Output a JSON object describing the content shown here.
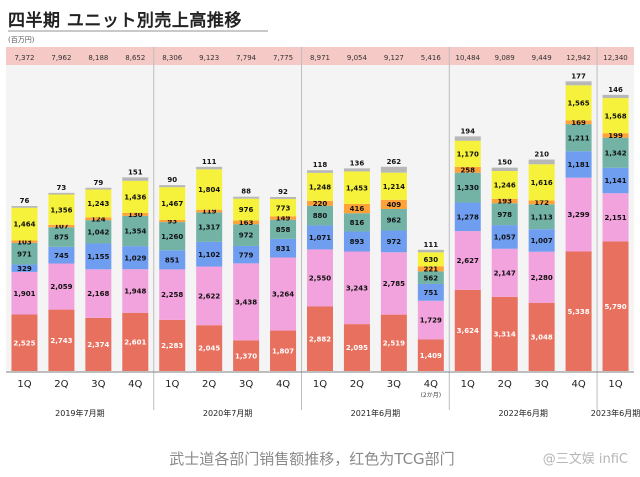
{
  "title": "四半期 ユニット別売上高推移",
  "unit_label": "(百万円)",
  "caption": "武士道各部门销售额推移，红色为TCG部门",
  "watermark": "@三文娱 infiC",
  "colors": {
    "totals_band": "#f5c9c6",
    "segments": [
      "#e8705e",
      "#f2a2dc",
      "#6f9ef0",
      "#72b3a6",
      "#ffa238",
      "#f6f23b",
      "#b7b7b7"
    ]
  },
  "chart_data": {
    "type": "bar",
    "stacked": true,
    "categories": [
      "1Q",
      "2Q",
      "3Q",
      "4Q",
      "1Q",
      "2Q",
      "3Q",
      "4Q",
      "1Q",
      "2Q",
      "3Q",
      "4Q",
      "1Q",
      "2Q",
      "3Q",
      "4Q",
      "1Q"
    ],
    "category_sub": [
      "",
      "",
      "",
      "",
      "",
      "",
      "",
      "",
      "",
      "",
      "",
      "(2か月)",
      "",
      "",
      "",
      "",
      ""
    ],
    "totals": [
      "7,372",
      "7,962",
      "8,188",
      "8,652",
      "8,306",
      "9,123",
      "7,794",
      "7,775",
      "8,971",
      "9,054",
      "9,127",
      "5,416",
      "10,484",
      "9,089",
      "9,449",
      "12,942",
      "12,340"
    ],
    "ylim": [
      0,
      13000
    ],
    "series": [
      {
        "values": [
          2525,
          2743,
          2374,
          2601,
          2283,
          2045,
          1370,
          1807,
          2882,
          2095,
          2519,
          1409,
          3624,
          3314,
          3048,
          5338,
          5790
        ]
      },
      {
        "values": [
          1901,
          2059,
          2168,
          1948,
          2258,
          2622,
          3438,
          3264,
          2550,
          3243,
          2785,
          1729,
          2627,
          2147,
          2280,
          3299,
          2151
        ]
      },
      {
        "values": [
          329,
          745,
          1155,
          1029,
          851,
          1102,
          779,
          831,
          1071,
          893,
          972,
          751,
          1278,
          1057,
          1007,
          1181,
          1141
        ]
      },
      {
        "values": [
          971,
          875,
          1042,
          1354,
          1260,
          1317,
          972,
          858,
          880,
          816,
          962,
          562,
          1330,
          978,
          1113,
          1211,
          1342
        ]
      },
      {
        "values": [
          103,
          107,
          124,
          130,
          93,
          119,
          163,
          149,
          220,
          416,
          409,
          221,
          258,
          193,
          172,
          169,
          199
        ]
      },
      {
        "values": [
          1464,
          1356,
          1243,
          1436,
          1467,
          1804,
          976,
          773,
          1248,
          1453,
          1214,
          630,
          1170,
          1246,
          1616,
          1565,
          1568
        ]
      },
      {
        "values": [
          76,
          73,
          79,
          151,
          90,
          111,
          88,
          92,
          118,
          136,
          262,
          111,
          194,
          150,
          210,
          177,
          146
        ]
      }
    ],
    "group_labels": [
      "2019年7月期",
      "2020年7月期",
      "2021年6月期",
      "2022年6月期",
      "2023年6月期"
    ],
    "group_spans": [
      [
        0,
        3
      ],
      [
        4,
        7
      ],
      [
        8,
        11
      ],
      [
        12,
        15
      ],
      [
        16,
        16
      ]
    ]
  }
}
